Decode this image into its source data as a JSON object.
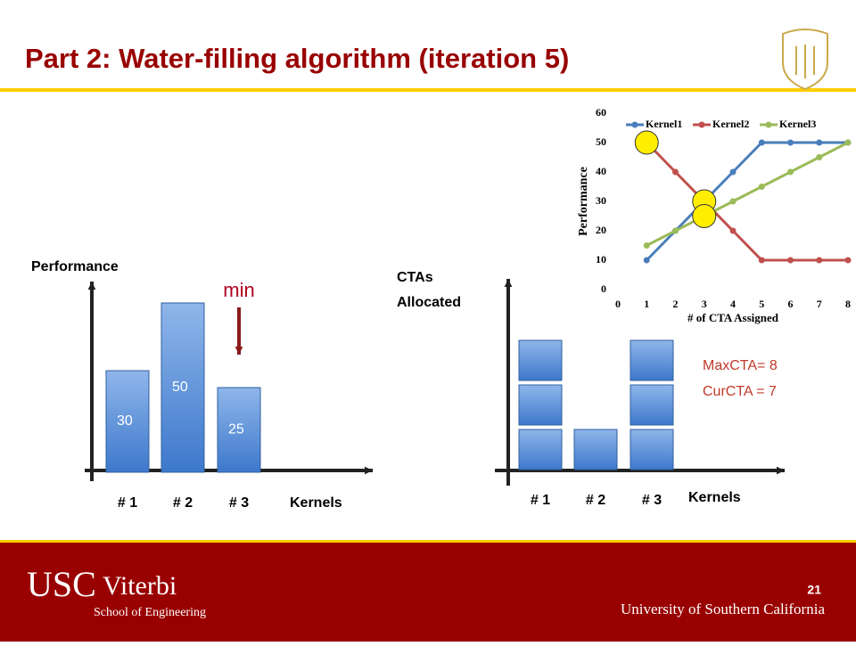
{
  "header": {
    "title": "Part 2: Water-filling algorithm (iteration 5)"
  },
  "chart_data": [
    {
      "type": "bar",
      "y_label": "Performance",
      "x_label": "Kernels",
      "categories": [
        "# 1",
        "# 2",
        "# 3"
      ],
      "values": [
        30,
        50,
        25
      ],
      "color": "#4a86d4",
      "annotation": "min"
    },
    {
      "type": "blocks",
      "y_label": [
        "CTAs",
        "Allocated"
      ],
      "x_label": "Kernels",
      "categories": [
        "# 1",
        "# 2",
        "# 3"
      ],
      "values": [
        3,
        1,
        3
      ],
      "color": "#4a86d4",
      "annotations": [
        "MaxCTA= 8",
        "CurCTA = 7"
      ]
    },
    {
      "type": "line",
      "x_label": "# of CTA Assigned",
      "y_label": "Performance",
      "x": [
        1,
        2,
        3,
        4,
        5,
        6,
        7,
        8
      ],
      "xlim": [
        0,
        8
      ],
      "xticks": [
        0,
        1,
        2,
        3,
        4,
        5,
        6,
        7,
        8
      ],
      "ylim": [
        0,
        60
      ],
      "yticks": [
        0,
        10,
        20,
        30,
        40,
        50,
        60
      ],
      "legend": "top",
      "series": [
        {
          "name": "Kernel1",
          "color": "#4a7ebb",
          "values": [
            10,
            20,
            30,
            40,
            50,
            50,
            50,
            50
          ]
        },
        {
          "name": "Kernel2",
          "color": "#c0504d",
          "values": [
            50,
            40,
            30,
            20,
            10,
            10,
            10,
            10
          ]
        },
        {
          "name": "Kernel3",
          "color": "#9bbb59",
          "values": [
            15,
            20,
            25,
            30,
            35,
            40,
            45,
            50
          ]
        }
      ]
    }
  ],
  "footer": {
    "school": "USC",
    "name": "Viterbi",
    "subtitle": "School of Engineering",
    "university": "University of Southern California",
    "page": "21"
  }
}
